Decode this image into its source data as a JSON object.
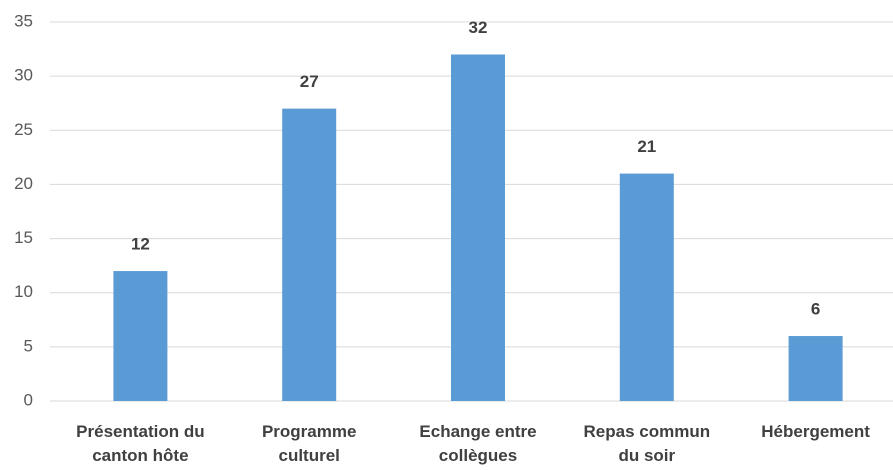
{
  "chart_data": {
    "type": "bar",
    "categories": [
      "Présentation du canton hôte",
      "Programme culturel",
      "Echange entre collègues",
      "Repas commun du soir",
      "Hébergement"
    ],
    "values": [
      12,
      27,
      32,
      21,
      6
    ],
    "color": "#5b9bd5",
    "ylim": [
      0,
      35
    ],
    "yticks": [
      0,
      5,
      10,
      15,
      20,
      25,
      30,
      35
    ],
    "grid": true
  }
}
